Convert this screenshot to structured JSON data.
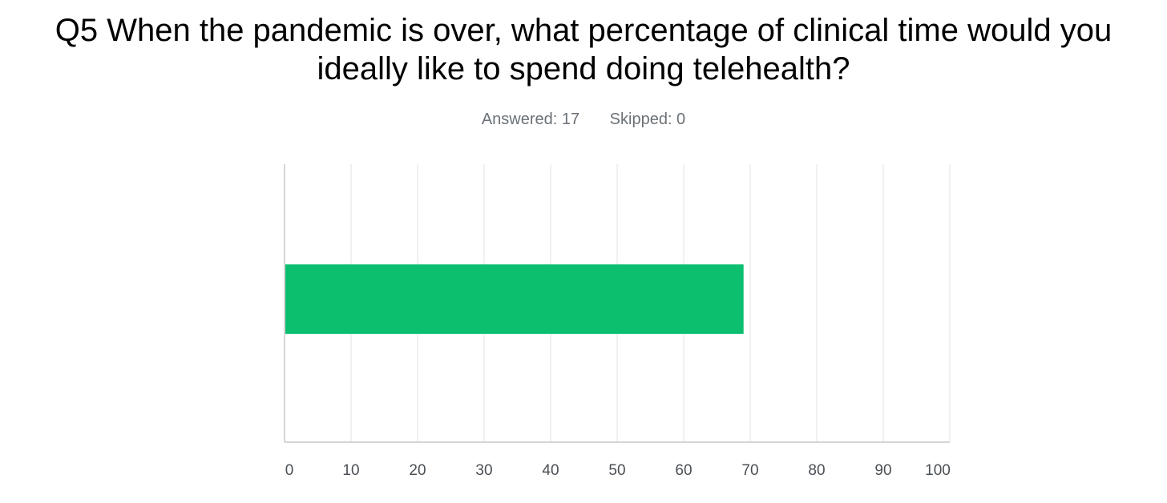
{
  "question": {
    "number": "Q5",
    "text_line1": "Q5 When the pandemic is over, what percentage of clinical time would you",
    "text_line2": "ideally like to spend doing telehealth?"
  },
  "stats": {
    "answered": "Answered: 17",
    "skipped": "Skipped: 0"
  },
  "colors": {
    "bar": "#0bbf6f",
    "grid": "#e3e3e3",
    "axis": "#c8c8c8"
  },
  "chart_data": {
    "type": "bar",
    "orientation": "horizontal",
    "categories": [
      ""
    ],
    "values": [
      69
    ],
    "title": "Q5 When the pandemic is over, what percentage of clinical time would you ideally like to spend doing telehealth?",
    "xlabel": "",
    "ylabel": "",
    "xlim": [
      0,
      100
    ],
    "xticks": [
      "0",
      "10",
      "20",
      "30",
      "40",
      "50",
      "60",
      "70",
      "80",
      "90",
      "100"
    ],
    "grid": true,
    "legend": "none"
  }
}
